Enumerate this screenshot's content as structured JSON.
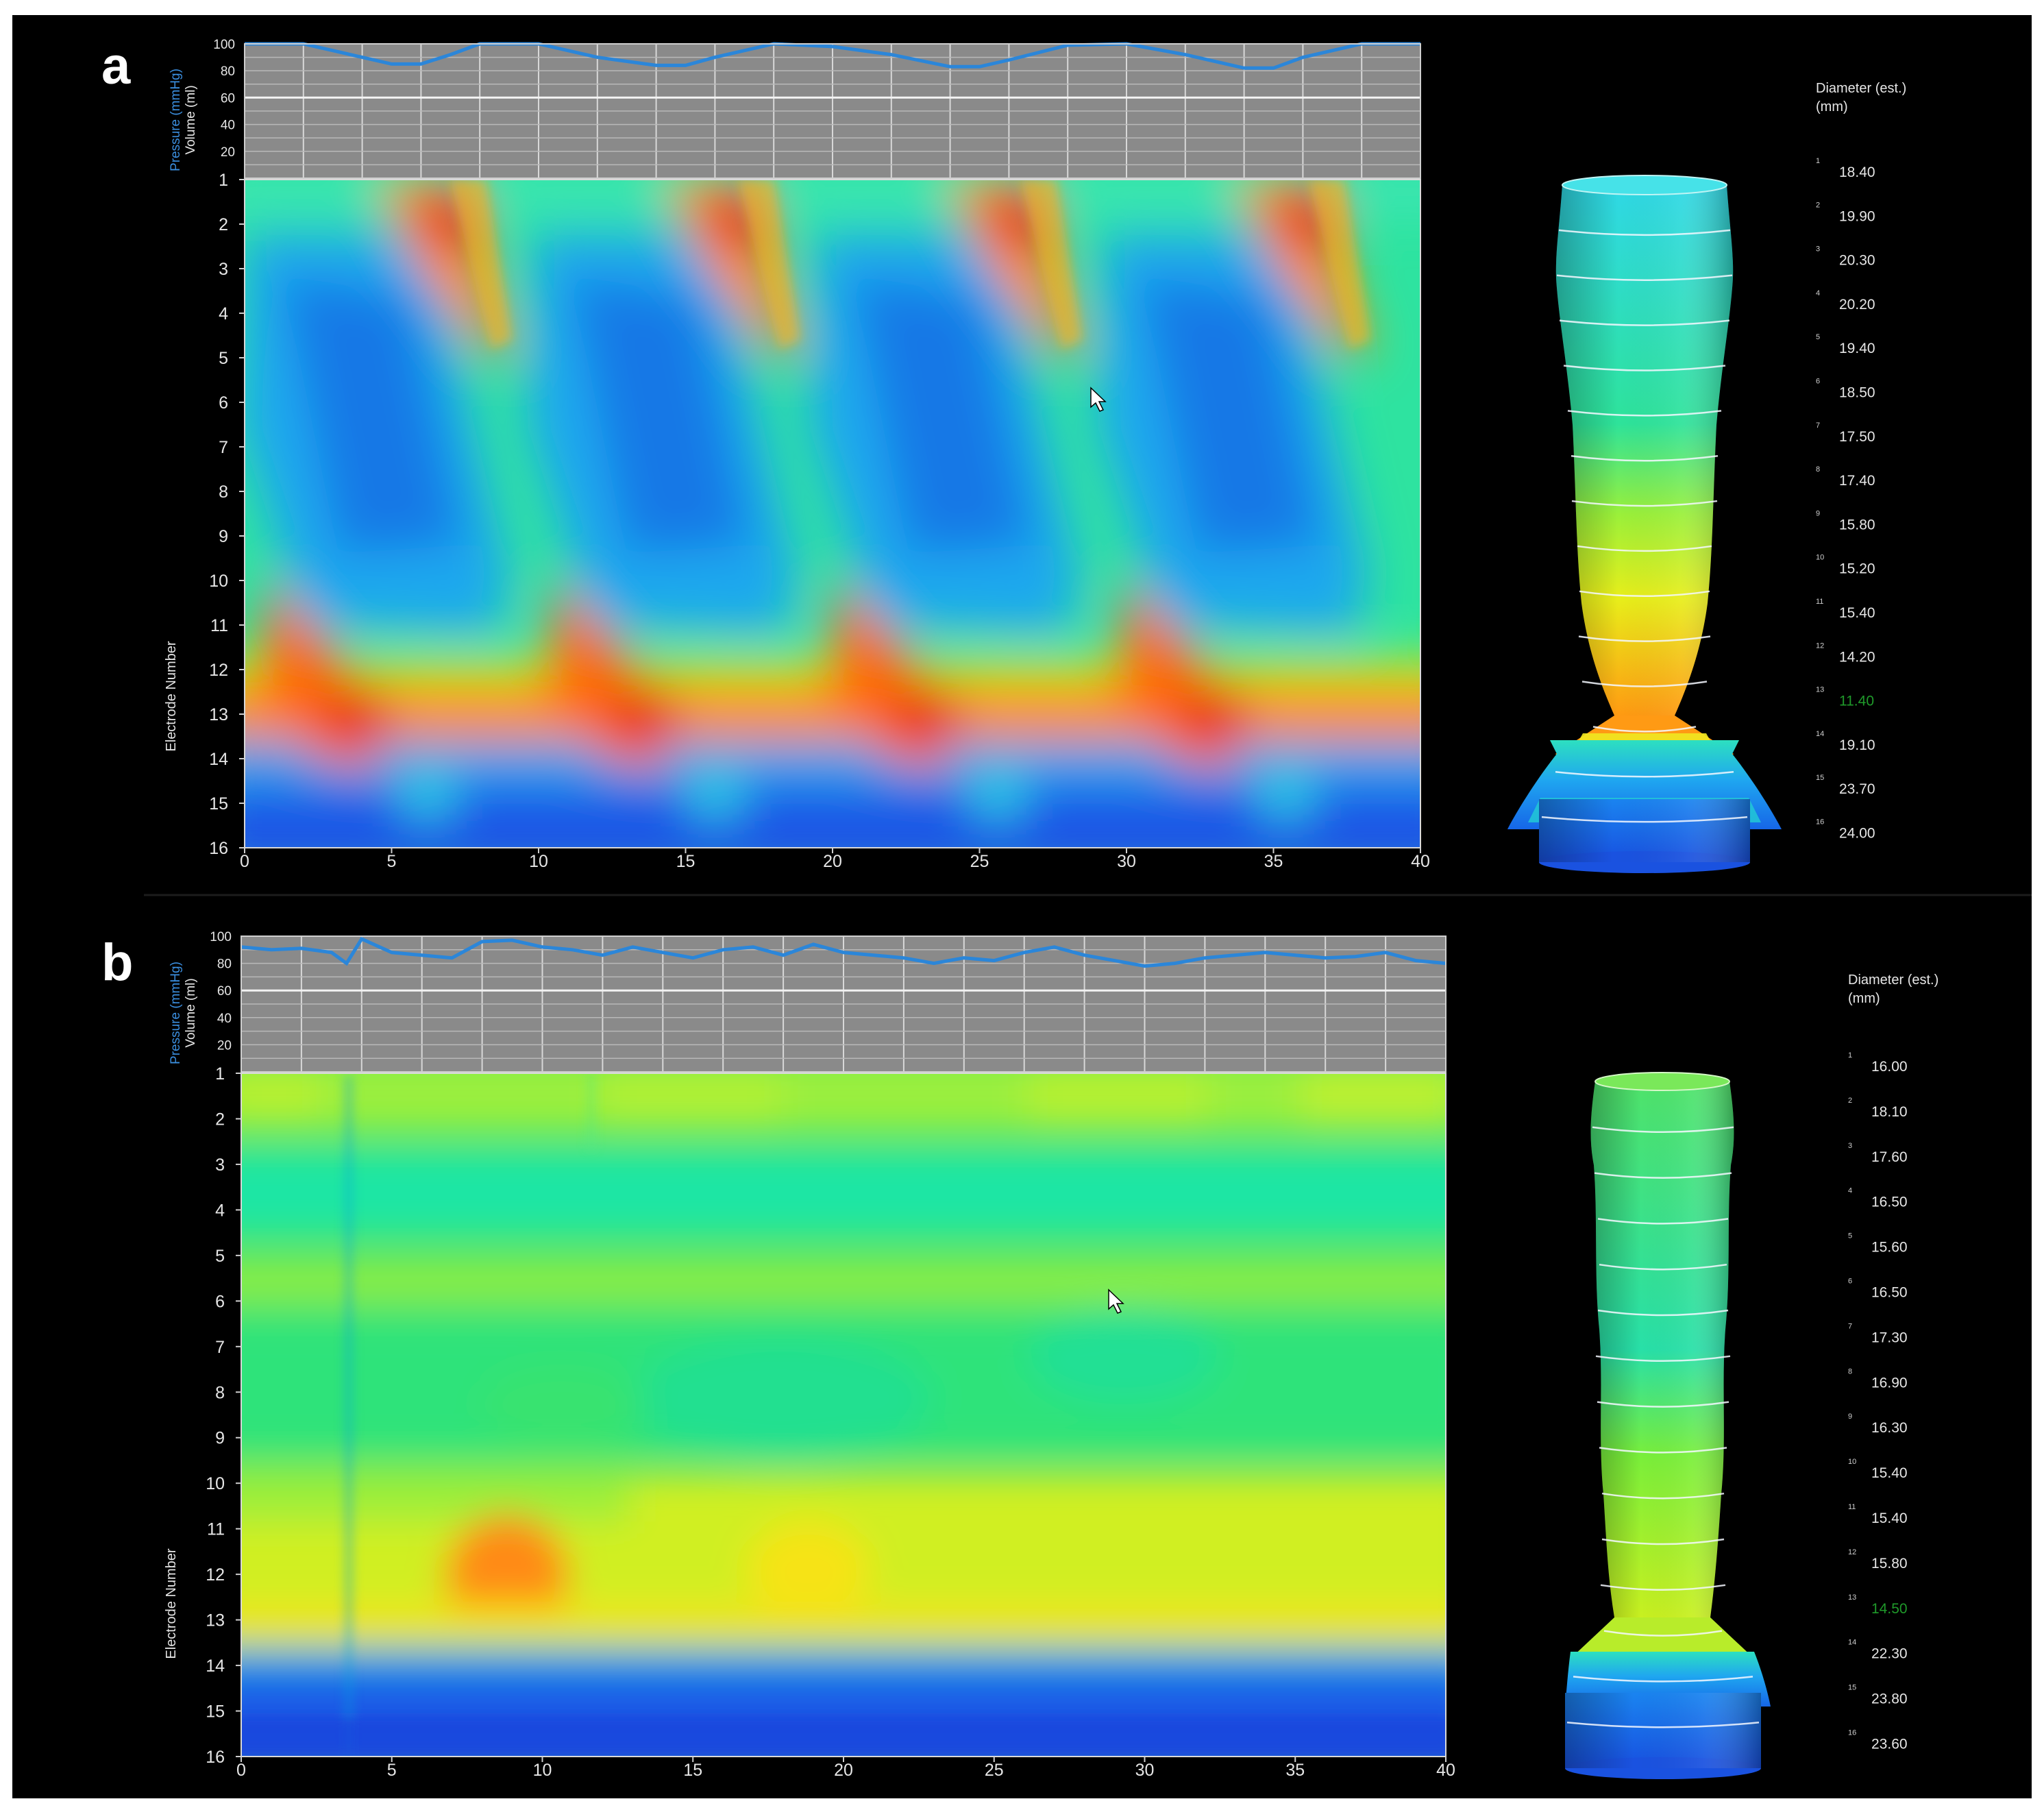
{
  "colors": {
    "background": "#000000",
    "frame": "#ffffff",
    "pressure_panel": "#8a8a8a",
    "pressure_line": "#2b86d9",
    "axis_text": "#e6e6e6",
    "pressure_label": "#3b8fe0",
    "highlight_value": "#1f9a2a"
  },
  "panels": [
    {
      "letter": "a",
      "pressure_axis": {
        "label_pressure": "Pressure (mmHg)",
        "label_volume": "Volume (ml)",
        "ticks": [
          "100",
          "80",
          "60",
          "40",
          "20"
        ]
      },
      "electrode_axis": {
        "label": "Electrode Number"
      },
      "diameter_header": [
        "Diameter (est.)",
        "(mm)"
      ],
      "chart_data": {
        "type": "heatmap",
        "xlabel": "",
        "ylabel": "Electrode Number",
        "xlim": [
          0,
          40
        ],
        "x_ticks": [
          "0",
          "5",
          "10",
          "15",
          "20",
          "25",
          "30",
          "35",
          "40"
        ],
        "y_ticks": [
          "1",
          "2",
          "3",
          "4",
          "5",
          "6",
          "7",
          "8",
          "9",
          "10",
          "11",
          "12",
          "13",
          "14",
          "15",
          "16"
        ],
        "pressure_trace": {
          "ylim": [
            0,
            100
          ],
          "x": [
            0,
            2,
            4,
            5,
            6,
            7,
            8,
            10,
            12,
            14,
            15,
            16,
            18,
            20,
            22,
            24,
            25,
            26,
            28,
            30,
            32,
            34,
            35,
            36,
            38,
            40
          ],
          "y": [
            100,
            100,
            90,
            85,
            85,
            92,
            100,
            100,
            90,
            84,
            84,
            90,
            100,
            98,
            92,
            83,
            83,
            88,
            99,
            100,
            92,
            82,
            82,
            90,
            100,
            100
          ]
        },
        "diameters": [
          {
            "electrode": "1",
            "value": "18.40"
          },
          {
            "electrode": "2",
            "value": "19.90"
          },
          {
            "electrode": "3",
            "value": "20.30"
          },
          {
            "electrode": "4",
            "value": "20.20"
          },
          {
            "electrode": "5",
            "value": "19.40"
          },
          {
            "electrode": "6",
            "value": "18.50"
          },
          {
            "electrode": "7",
            "value": "17.50"
          },
          {
            "electrode": "8",
            "value": "17.40"
          },
          {
            "electrode": "9",
            "value": "15.80"
          },
          {
            "electrode": "10",
            "value": "15.20"
          },
          {
            "electrode": "11",
            "value": "15.40"
          },
          {
            "electrode": "12",
            "value": "14.20"
          },
          {
            "electrode": "13",
            "value": "11.40"
          },
          {
            "electrode": "14",
            "value": "19.10"
          },
          {
            "electrode": "15",
            "value": "23.70"
          },
          {
            "electrode": "16",
            "value": "24.00"
          }
        ],
        "highlight_electrode": "13"
      }
    },
    {
      "letter": "b",
      "pressure_axis": {
        "label_pressure": "Pressure (mmHg)",
        "label_volume": "Volume (ml)",
        "ticks": [
          "100",
          "80",
          "60",
          "40",
          "20"
        ]
      },
      "electrode_axis": {
        "label": "Electrode Number"
      },
      "diameter_header": [
        "Diameter (est.)",
        "(mm)"
      ],
      "chart_data": {
        "type": "heatmap",
        "xlabel": "",
        "ylabel": "Electrode Number",
        "xlim": [
          0,
          40
        ],
        "x_ticks": [
          "0",
          "5",
          "10",
          "15",
          "20",
          "25",
          "30",
          "35",
          "40"
        ],
        "y_ticks": [
          "1",
          "2",
          "3",
          "4",
          "5",
          "6",
          "7",
          "8",
          "9",
          "10",
          "11",
          "12",
          "13",
          "14",
          "15",
          "16"
        ],
        "pressure_trace": {
          "ylim": [
            0,
            100
          ],
          "x": [
            0,
            1,
            2,
            3,
            3.5,
            4,
            5,
            6,
            7,
            8,
            9,
            10,
            11,
            12,
            13,
            14,
            15,
            16,
            17,
            18,
            19,
            20,
            21,
            22,
            23,
            24,
            25,
            26,
            27,
            28,
            29,
            30,
            31,
            32,
            33,
            34,
            35,
            36,
            37,
            38,
            39,
            40
          ],
          "y": [
            92,
            90,
            91,
            88,
            80,
            98,
            88,
            86,
            84,
            96,
            97,
            92,
            90,
            86,
            92,
            88,
            84,
            90,
            92,
            86,
            94,
            88,
            86,
            84,
            80,
            84,
            82,
            88,
            92,
            86,
            82,
            78,
            80,
            84,
            86,
            88,
            86,
            84,
            85,
            88,
            82,
            80
          ]
        },
        "diameters": [
          {
            "electrode": "1",
            "value": "16.00"
          },
          {
            "electrode": "2",
            "value": "18.10"
          },
          {
            "electrode": "3",
            "value": "17.60"
          },
          {
            "electrode": "4",
            "value": "16.50"
          },
          {
            "electrode": "5",
            "value": "15.60"
          },
          {
            "electrode": "6",
            "value": "16.50"
          },
          {
            "electrode": "7",
            "value": "17.30"
          },
          {
            "electrode": "8",
            "value": "16.90"
          },
          {
            "electrode": "9",
            "value": "16.30"
          },
          {
            "electrode": "10",
            "value": "15.40"
          },
          {
            "electrode": "11",
            "value": "15.40"
          },
          {
            "electrode": "12",
            "value": "15.80"
          },
          {
            "electrode": "13",
            "value": "14.50"
          },
          {
            "electrode": "14",
            "value": "22.30"
          },
          {
            "electrode": "15",
            "value": "23.80"
          },
          {
            "electrode": "16",
            "value": "23.60"
          }
        ],
        "highlight_electrode": "13"
      }
    }
  ]
}
